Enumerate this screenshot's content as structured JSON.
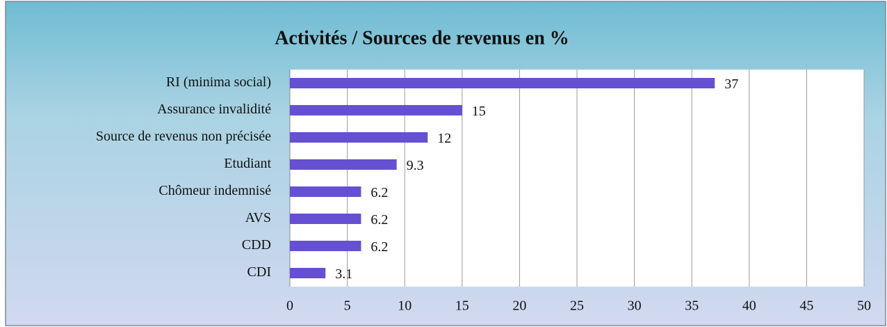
{
  "chart_data": {
    "type": "bar",
    "orientation": "horizontal",
    "title": "Activités / Sources de revenus en %",
    "categories": [
      "RI (minima social)",
      "Assurance invalidité",
      "Source de revenus non précisée",
      "Etudiant",
      "Chômeur indemnisé",
      "AVS",
      "CDD",
      "CDI"
    ],
    "values": [
      37,
      15,
      12,
      9.3,
      6.2,
      6.2,
      6.2,
      3.1
    ],
    "color": "#6650d2",
    "xlim": [
      0,
      50
    ],
    "xticks": [
      0,
      5,
      10,
      15,
      20,
      25,
      30,
      35,
      40,
      45,
      50
    ],
    "grid": true
  }
}
